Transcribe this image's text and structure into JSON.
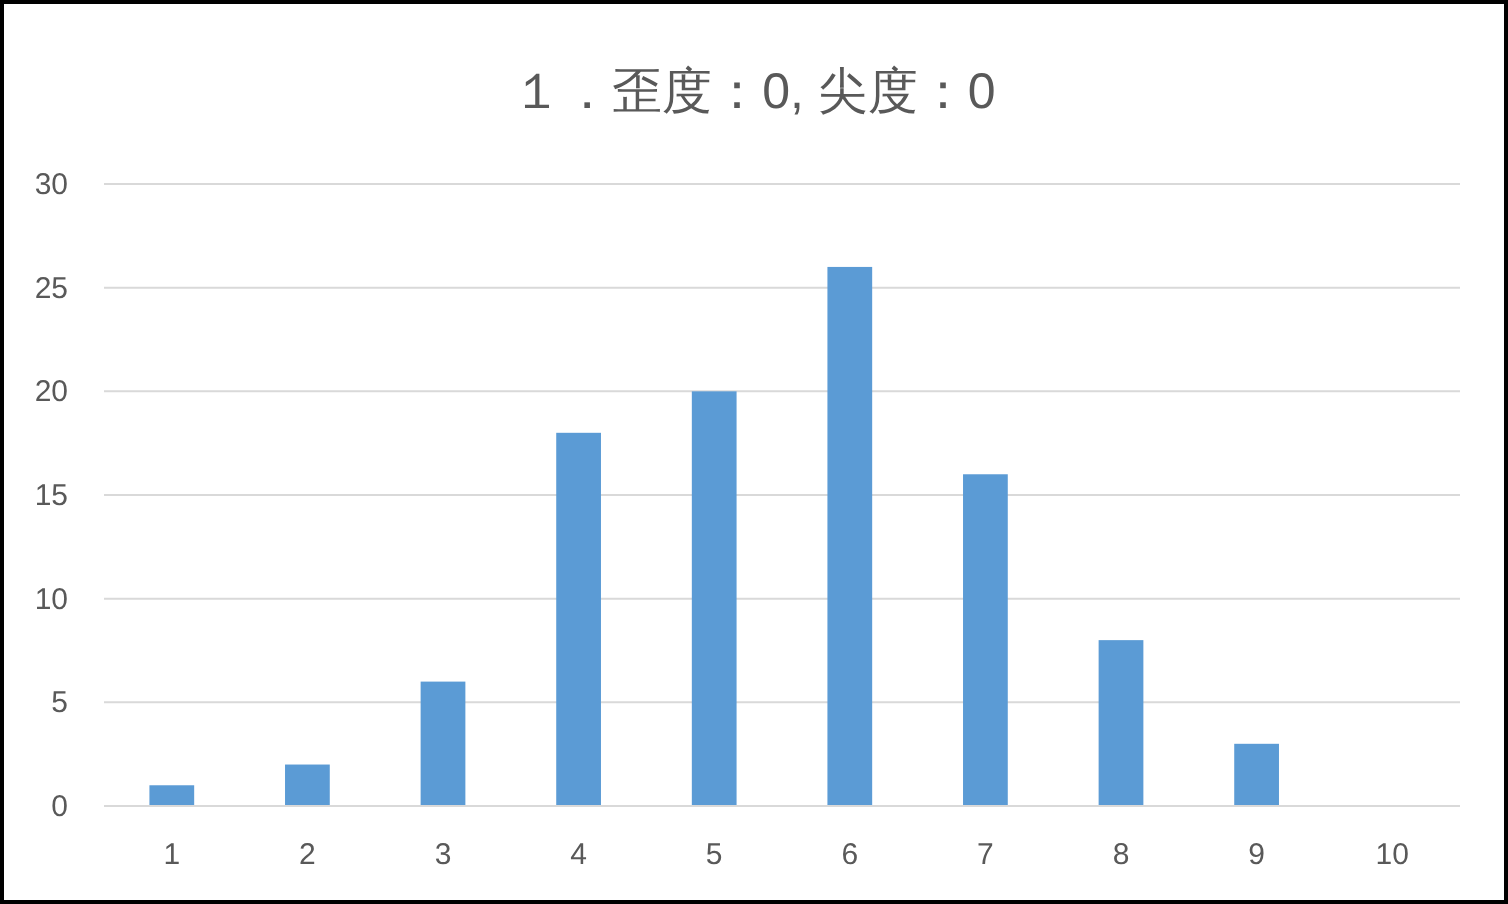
{
  "chart_data": {
    "type": "bar",
    "title": "１．歪度：0, 尖度：0",
    "categories": [
      "1",
      "2",
      "3",
      "4",
      "5",
      "6",
      "7",
      "8",
      "9",
      "10"
    ],
    "values": [
      1,
      2,
      6,
      18,
      20,
      26,
      16,
      8,
      3,
      0
    ],
    "color": "#5b9bd5",
    "ylim": [
      0,
      30
    ],
    "yticks": [
      0,
      5,
      10,
      15,
      20,
      25,
      30
    ],
    "grid": "y"
  }
}
